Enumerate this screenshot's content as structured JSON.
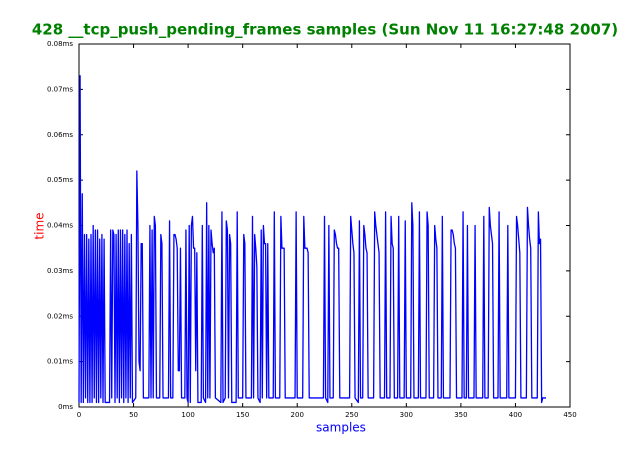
{
  "chart_data": {
    "type": "line",
    "title": "428 __tcp_push_pending_frames samples (Sun Nov 11 16:27:48 2007)",
    "xlabel": "samples",
    "ylabel": "time",
    "xlim": [
      0,
      450
    ],
    "xticks": [
      0,
      50,
      100,
      150,
      200,
      250,
      300,
      350,
      400,
      450
    ],
    "ylim": [
      0,
      0.08
    ],
    "yticks": [
      {
        "value": 0,
        "label": "0ms"
      },
      {
        "value": 0.01,
        "label": "0.01ms"
      },
      {
        "value": 0.02,
        "label": "0.02ms"
      },
      {
        "value": 0.03,
        "label": "0.03ms"
      },
      {
        "value": 0.04,
        "label": "0.04ms"
      },
      {
        "value": 0.05,
        "label": "0.05ms"
      },
      {
        "value": 0.06,
        "label": "0.06ms"
      },
      {
        "value": 0.07,
        "label": "0.07ms"
      },
      {
        "value": 0.08,
        "label": "0.08ms"
      }
    ],
    "x": [
      0,
      1,
      2,
      3,
      4,
      5,
      6,
      7,
      8,
      9,
      10,
      11,
      12,
      13,
      14,
      15,
      16,
      17,
      18,
      19,
      20,
      21,
      22,
      23,
      24,
      28,
      29,
      30,
      31,
      32,
      33,
      34,
      35,
      36,
      37,
      38,
      39,
      40,
      41,
      42,
      43,
      44,
      45,
      46,
      47,
      48,
      49,
      52,
      53,
      54,
      55,
      56,
      57,
      58,
      59,
      64,
      65,
      66,
      67,
      68,
      69,
      70,
      71,
      74,
      75,
      76,
      77,
      82,
      83,
      84,
      86,
      87,
      88,
      89,
      90,
      91,
      92,
      93,
      94,
      97,
      98,
      99,
      100,
      101,
      102,
      103,
      104,
      105,
      106,
      107,
      108,
      109,
      112,
      113,
      114,
      116,
      117,
      118,
      119,
      120,
      121,
      122,
      123,
      124,
      125,
      130,
      131,
      132,
      134,
      135,
      136,
      137,
      138,
      139,
      140,
      144,
      145,
      146,
      150,
      151,
      152,
      153,
      158,
      159,
      160,
      161,
      162,
      163,
      164,
      166,
      167,
      168,
      169,
      170,
      171,
      172,
      173,
      174,
      178,
      179,
      180,
      184,
      185,
      186,
      187,
      188,
      189,
      198,
      199,
      200,
      205,
      206,
      207,
      208,
      209,
      210,
      211,
      224,
      225,
      226,
      228,
      229,
      230,
      233,
      234,
      235,
      236,
      237,
      238,
      239,
      248,
      249,
      250,
      251,
      252,
      253,
      256,
      257,
      258,
      260,
      261,
      262,
      263,
      264,
      265,
      270,
      271,
      272,
      273,
      274,
      275,
      276,
      280,
      281,
      282,
      285,
      286,
      287,
      288,
      289,
      292,
      293,
      294,
      298,
      299,
      300,
      304,
      305,
      306,
      307,
      311,
      312,
      313,
      318,
      319,
      320,
      321,
      325,
      326,
      327,
      328,
      329,
      332,
      333,
      334,
      340,
      341,
      342,
      343,
      344,
      345,
      346,
      351,
      352,
      353,
      355,
      356,
      357,
      362,
      363,
      364,
      370,
      371,
      372,
      375,
      376,
      377,
      378,
      379,
      380,
      384,
      385,
      386,
      392,
      393,
      394,
      400,
      401,
      402,
      403,
      404,
      405,
      410,
      411,
      412,
      413,
      414,
      415,
      420,
      421,
      422,
      423,
      424,
      425,
      428
    ],
    "series": [
      {
        "color": "#0000ff",
        "values": [
          0.001,
          0.073,
          0.001,
          0.047,
          0.001,
          0.038,
          0.002,
          0.038,
          0.001,
          0.037,
          0.001,
          0.038,
          0.001,
          0.04,
          0.002,
          0.039,
          0.001,
          0.039,
          0.001,
          0.037,
          0.002,
          0.038,
          0.001,
          0.037,
          0.001,
          0.001,
          0.039,
          0.002,
          0.039,
          0.038,
          0.001,
          0.038,
          0.002,
          0.039,
          0.001,
          0.039,
          0.002,
          0.039,
          0.001,
          0.038,
          0.002,
          0.039,
          0.001,
          0.036,
          0.002,
          0.038,
          0.001,
          0.002,
          0.052,
          0.04,
          0.01,
          0.008,
          0.036,
          0.036,
          0.002,
          0.002,
          0.04,
          0.002,
          0.039,
          0.002,
          0.042,
          0.04,
          0.002,
          0.002,
          0.038,
          0.036,
          0.002,
          0.002,
          0.041,
          0.002,
          0.002,
          0.038,
          0.038,
          0.037,
          0.035,
          0.008,
          0.008,
          0.035,
          0.002,
          0.002,
          0.039,
          0.002,
          0.001,
          0.04,
          0.001,
          0.04,
          0.042,
          0.035,
          0.035,
          0.008,
          0.034,
          0.001,
          0.001,
          0.04,
          0.002,
          0.001,
          0.045,
          0.002,
          0.04,
          0.002,
          0.039,
          0.036,
          0.034,
          0.035,
          0.002,
          0.001,
          0.043,
          0.001,
          0.002,
          0.041,
          0.039,
          0.002,
          0.038,
          0.036,
          0.001,
          0.001,
          0.043,
          0.002,
          0.002,
          0.038,
          0.036,
          0.002,
          0.002,
          0.042,
          0.002,
          0.038,
          0.035,
          0.031,
          0.002,
          0.001,
          0.039,
          0.002,
          0.04,
          0.036,
          0.036,
          0.002,
          0.036,
          0.002,
          0.002,
          0.043,
          0.002,
          0.002,
          0.042,
          0.035,
          0.035,
          0.035,
          0.002,
          0.002,
          0.043,
          0.002,
          0.002,
          0.042,
          0.035,
          0.035,
          0.035,
          0.034,
          0.002,
          0.002,
          0.042,
          0.002,
          0.001,
          0.04,
          0.002,
          0.002,
          0.039,
          0.038,
          0.036,
          0.035,
          0.035,
          0.002,
          0.002,
          0.042,
          0.039,
          0.036,
          0.034,
          0.002,
          0.001,
          0.041,
          0.002,
          0.002,
          0.04,
          0.038,
          0.035,
          0.034,
          0.002,
          0.002,
          0.043,
          0.04,
          0.038,
          0.036,
          0.034,
          0.002,
          0.002,
          0.043,
          0.002,
          0.002,
          0.042,
          0.036,
          0.035,
          0.002,
          0.002,
          0.042,
          0.002,
          0.002,
          0.041,
          0.002,
          0.002,
          0.045,
          0.04,
          0.002,
          0.002,
          0.043,
          0.002,
          0.002,
          0.043,
          0.04,
          0.002,
          0.002,
          0.04,
          0.037,
          0.035,
          0.002,
          0.002,
          0.042,
          0.002,
          0.002,
          0.039,
          0.039,
          0.038,
          0.036,
          0.035,
          0.002,
          0.002,
          0.043,
          0.002,
          0.002,
          0.04,
          0.002,
          0.002,
          0.04,
          0.002,
          0.002,
          0.042,
          0.002,
          0.002,
          0.044,
          0.04,
          0.038,
          0.036,
          0.002,
          0.002,
          0.043,
          0.002,
          0.002,
          0.04,
          0.002,
          0.002,
          0.042,
          0.04,
          0.037,
          0.034,
          0.002,
          0.002,
          0.044,
          0.04,
          0.037,
          0.035,
          0.002,
          0.002,
          0.043,
          0.036,
          0.037,
          0.001,
          0.002,
          0.002
        ]
      }
    ],
    "title_color": "#008000",
    "xlabel_color": "#0000ff",
    "ylabel_color": "#ff0000"
  }
}
